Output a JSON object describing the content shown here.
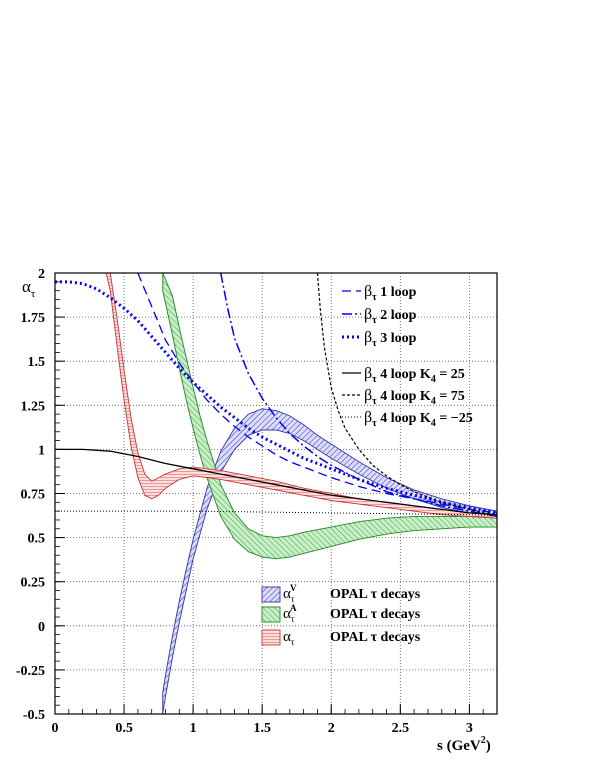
{
  "chart_data": {
    "type": "line",
    "title": "",
    "xlabel": "s (GeV",
    "xlabel_sup": "2",
    "xlabel_close": ")",
    "ylabel": "α",
    "ylabel_sub": "τ",
    "xlim": [
      0,
      3.2
    ],
    "ylim": [
      -0.5,
      2
    ],
    "xticks": [
      0,
      0.5,
      1,
      1.5,
      2,
      2.5,
      3
    ],
    "xtick_labels": [
      "0",
      "0.5",
      "1",
      "1.5",
      "2",
      "2.5",
      "3"
    ],
    "yticks": [
      -0.5,
      -0.25,
      0,
      0.25,
      0.5,
      0.75,
      1,
      1.25,
      1.5,
      1.75,
      2
    ],
    "ytick_labels": [
      "-0.5",
      "-0.25",
      "0",
      "0.25",
      "0.5",
      "0.75",
      "1",
      "1.25",
      "1.5",
      "1.75",
      "2"
    ],
    "grid": true,
    "legend_placement": "top-right and lower-center",
    "series": [
      {
        "name": "β 1 loop",
        "sub": "τ",
        "style": "dashed",
        "color": "#0000ff",
        "x": [
          0.6,
          0.7,
          0.8,
          0.9,
          1.0,
          1.1,
          1.2,
          1.3,
          1.4,
          1.5,
          1.6,
          1.7,
          1.8,
          1.9,
          2.0,
          2.2,
          2.4,
          2.6,
          2.8,
          3.0,
          3.2
        ],
        "y": [
          2.0,
          1.81,
          1.62,
          1.49,
          1.38,
          1.28,
          1.2,
          1.13,
          1.07,
          1.02,
          0.97,
          0.93,
          0.9,
          0.87,
          0.84,
          0.79,
          0.75,
          0.72,
          0.69,
          0.66,
          0.64
        ]
      },
      {
        "name": "β 2 loop",
        "sub": "τ",
        "style": "dashdot",
        "color": "#0000ff",
        "x": [
          1.2,
          1.25,
          1.3,
          1.4,
          1.5,
          1.6,
          1.7,
          1.8,
          1.9,
          2.0,
          2.2,
          2.4,
          2.6,
          2.8,
          3.0,
          3.2
        ],
        "y": [
          2.0,
          1.8,
          1.63,
          1.43,
          1.29,
          1.18,
          1.09,
          1.02,
          0.96,
          0.91,
          0.83,
          0.76,
          0.72,
          0.68,
          0.65,
          0.62
        ]
      },
      {
        "name": "β 3 loop",
        "sub": "τ",
        "style": "dotted",
        "color": "#0000ff",
        "x": [
          0.0,
          0.1,
          0.2,
          0.3,
          0.4,
          0.5,
          0.6,
          0.7,
          0.8,
          0.9,
          1.0,
          1.1,
          1.2,
          1.3,
          1.4,
          1.5,
          1.6,
          1.7,
          1.8,
          1.9,
          2.0,
          2.2,
          2.4,
          2.6,
          2.8,
          3.0,
          3.2
        ],
        "y": [
          1.95,
          1.95,
          1.94,
          1.91,
          1.86,
          1.8,
          1.73,
          1.64,
          1.55,
          1.46,
          1.38,
          1.31,
          1.24,
          1.18,
          1.12,
          1.07,
          1.03,
          0.99,
          0.95,
          0.92,
          0.89,
          0.83,
          0.78,
          0.74,
          0.7,
          0.67,
          0.64
        ]
      },
      {
        "name": "β 4 loop K",
        "sub": "τ",
        "k_label": "4",
        "k_value": "=  25",
        "style": "solid",
        "color": "#000000",
        "x": [
          0.0,
          0.2,
          0.4,
          0.6,
          0.8,
          1.0,
          1.2,
          1.4,
          1.6,
          1.8,
          2.0,
          2.2,
          2.4,
          2.6,
          2.8,
          3.0,
          3.2
        ],
        "y": [
          1.0,
          1.0,
          0.99,
          0.96,
          0.92,
          0.89,
          0.86,
          0.83,
          0.8,
          0.77,
          0.74,
          0.72,
          0.7,
          0.68,
          0.66,
          0.64,
          0.63
        ]
      },
      {
        "name": "β 4 loop K",
        "sub": "τ",
        "k_label": "4",
        "k_value": "=  75",
        "style": "dashed-fine",
        "color": "#000000",
        "x": [
          1.9,
          1.92,
          1.95,
          2.0,
          2.05,
          2.1,
          2.2,
          2.3,
          2.4,
          2.5,
          2.6,
          2.7,
          2.8,
          2.9,
          3.0,
          3.1,
          3.2
        ],
        "y": [
          2.0,
          1.8,
          1.58,
          1.35,
          1.22,
          1.12,
          1.0,
          0.91,
          0.85,
          0.8,
          0.76,
          0.73,
          0.7,
          0.68,
          0.66,
          0.64,
          0.63
        ]
      },
      {
        "name": "β 4 loop K",
        "sub": "τ",
        "k_label": "4",
        "k_value": "= −25",
        "style": "dotted-fine",
        "color": "#000000",
        "x": [
          0.0,
          0.5,
          1.0,
          1.5,
          2.0,
          2.5,
          3.0,
          3.2
        ],
        "y": [
          0.65,
          0.65,
          0.65,
          0.645,
          0.64,
          0.635,
          0.63,
          0.625
        ]
      }
    ],
    "bands": [
      {
        "name": "OPAL τ decays",
        "label": "α",
        "sub": "τ",
        "sup": "V",
        "fill": "#ccccff",
        "stroke": "#3333aa",
        "x": [
          0.78,
          0.8,
          0.85,
          0.9,
          0.95,
          1.0,
          1.1,
          1.2,
          1.3,
          1.4,
          1.5,
          1.6,
          1.7,
          1.8,
          1.9,
          2.0,
          2.2,
          2.4,
          2.6,
          2.8,
          3.0,
          3.2
        ],
        "ylo": [
          -0.5,
          -0.4,
          -0.18,
          0.02,
          0.2,
          0.38,
          0.66,
          0.87,
          1.0,
          1.08,
          1.11,
          1.11,
          1.09,
          1.05,
          1.0,
          0.95,
          0.86,
          0.78,
          0.72,
          0.67,
          0.64,
          0.61
        ],
        "yhi": [
          -0.38,
          -0.28,
          -0.06,
          0.14,
          0.32,
          0.49,
          0.78,
          0.99,
          1.12,
          1.2,
          1.23,
          1.22,
          1.19,
          1.14,
          1.08,
          1.03,
          0.93,
          0.84,
          0.77,
          0.72,
          0.68,
          0.65
        ]
      },
      {
        "name": "OPAL τ decays",
        "label": "α",
        "sub": "τ",
        "sup": "A",
        "fill": "#c8f0c8",
        "stroke": "#228822",
        "x": [
          0.78,
          0.85,
          0.9,
          0.95,
          1.0,
          1.05,
          1.1,
          1.2,
          1.3,
          1.4,
          1.5,
          1.6,
          1.7,
          1.8,
          2.0,
          2.2,
          2.4,
          2.6,
          2.8,
          3.0,
          3.2
        ],
        "ylo": [
          1.9,
          1.65,
          1.46,
          1.28,
          1.12,
          0.97,
          0.84,
          0.62,
          0.49,
          0.42,
          0.39,
          0.38,
          0.39,
          0.41,
          0.45,
          0.49,
          0.52,
          0.54,
          0.55,
          0.56,
          0.56
        ],
        "yhi": [
          2.0,
          1.87,
          1.69,
          1.52,
          1.35,
          1.19,
          1.05,
          0.8,
          0.64,
          0.55,
          0.51,
          0.5,
          0.51,
          0.53,
          0.56,
          0.59,
          0.61,
          0.62,
          0.62,
          0.62,
          0.61
        ]
      },
      {
        "name": "OPAL τ decays",
        "label": "α",
        "sub": "τ",
        "sup": "",
        "fill": "#ffcccc",
        "stroke": "#cc3333",
        "x": [
          0.37,
          0.4,
          0.45,
          0.5,
          0.55,
          0.6,
          0.65,
          0.7,
          0.75,
          0.8,
          0.9,
          1.0,
          1.1,
          1.2,
          1.4,
          1.6,
          1.8,
          2.0,
          2.2,
          2.4,
          2.6,
          2.8,
          3.0,
          3.2
        ],
        "ylo": [
          2.0,
          1.9,
          1.58,
          1.28,
          1.02,
          0.84,
          0.74,
          0.72,
          0.74,
          0.78,
          0.83,
          0.85,
          0.84,
          0.83,
          0.8,
          0.77,
          0.74,
          0.71,
          0.69,
          0.67,
          0.65,
          0.63,
          0.62,
          0.61
        ],
        "yhi": [
          2.0,
          2.0,
          1.74,
          1.45,
          1.18,
          0.98,
          0.86,
          0.82,
          0.84,
          0.86,
          0.89,
          0.9,
          0.89,
          0.88,
          0.85,
          0.82,
          0.78,
          0.75,
          0.72,
          0.7,
          0.68,
          0.66,
          0.64,
          0.63
        ]
      }
    ]
  }
}
